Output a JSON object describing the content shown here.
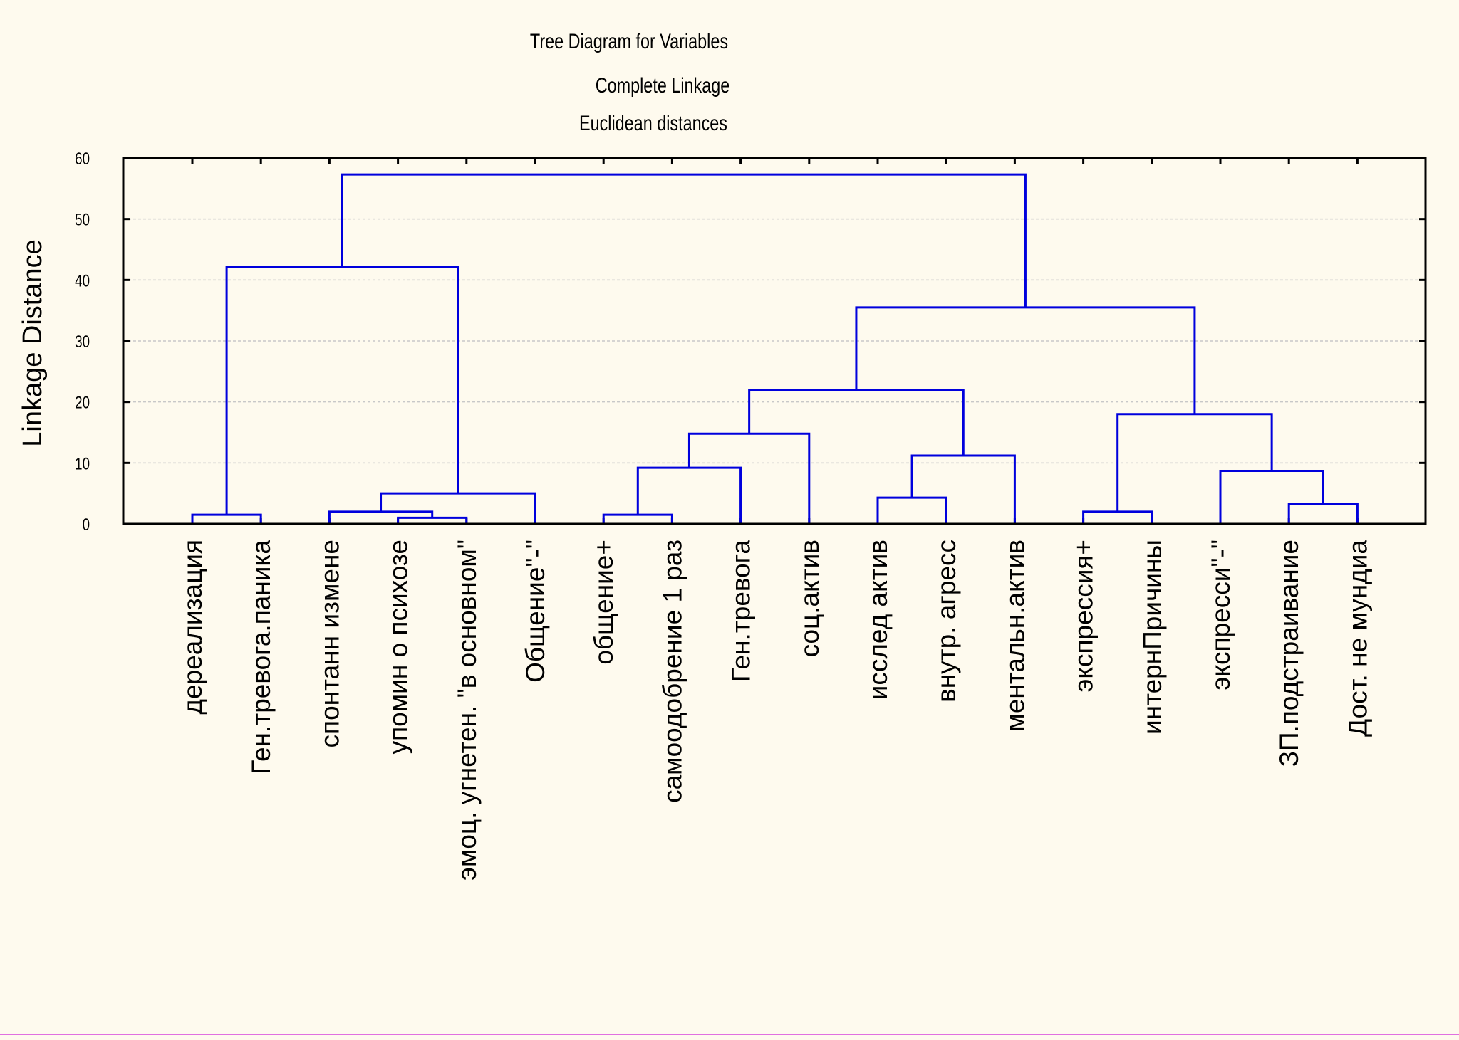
{
  "chart_data": {
    "type": "dendrogram",
    "title": "Tree Diagram for  Variables",
    "subtitle": "Complete Linkage",
    "subtitle2": "Euclidean distances",
    "ylabel": "Linkage Distance",
    "ylim": [
      0,
      60
    ],
    "yticks": [
      "0",
      "10",
      "20",
      "30",
      "40",
      "50",
      "60"
    ],
    "grid": true,
    "line_color": "#0000dd",
    "leaves": [
      "дереализация",
      "Ген.тревога.паника",
      "спонтанн измене",
      "упомин о психозе",
      "эмоц. угнетен. \"в основном\"",
      "Общение\"-\"",
      "общение+",
      "самоодобрение 1  раз",
      "Ген.тревога",
      "соц.актив",
      "исслед актив",
      "внутр. агресс",
      "ментальн.актив",
      "экспрессия+",
      "интернПричины",
      "экспресси\"-\"",
      "ЗП.подстраивание",
      "Дост. не мундиа"
    ],
    "merges": [
      {
        "left": "L3",
        "right": "L4",
        "height": 1.0
      },
      {
        "left": "L0",
        "right": "L1",
        "height": 1.5
      },
      {
        "left": "L6",
        "right": "L7",
        "height": 1.5
      },
      {
        "left": "L2",
        "right": "C0",
        "height": 2.0
      },
      {
        "left": "L13",
        "right": "L14",
        "height": 2.0
      },
      {
        "left": "L16",
        "right": "L17",
        "height": 3.3
      },
      {
        "left": "L10",
        "right": "L11",
        "height": 4.3
      },
      {
        "left": "C3",
        "right": "L5",
        "height": 5.0
      },
      {
        "left": "L15",
        "right": "C5",
        "height": 8.7
      },
      {
        "left": "C2",
        "right": "L8",
        "height": 9.2
      },
      {
        "left": "C6",
        "right": "L12",
        "height": 11.2
      },
      {
        "left": "C9",
        "right": "L9",
        "height": 14.8
      },
      {
        "left": "C4",
        "right": "C8",
        "height": 18.0
      },
      {
        "left": "C11",
        "right": "C10",
        "height": 22.0
      },
      {
        "left": "C1",
        "right": "C7",
        "height": 42.2
      },
      {
        "left": "C13",
        "right": "C12",
        "height": 35.5
      },
      {
        "left": "C14",
        "right": "C15",
        "height": 57.3
      }
    ]
  }
}
